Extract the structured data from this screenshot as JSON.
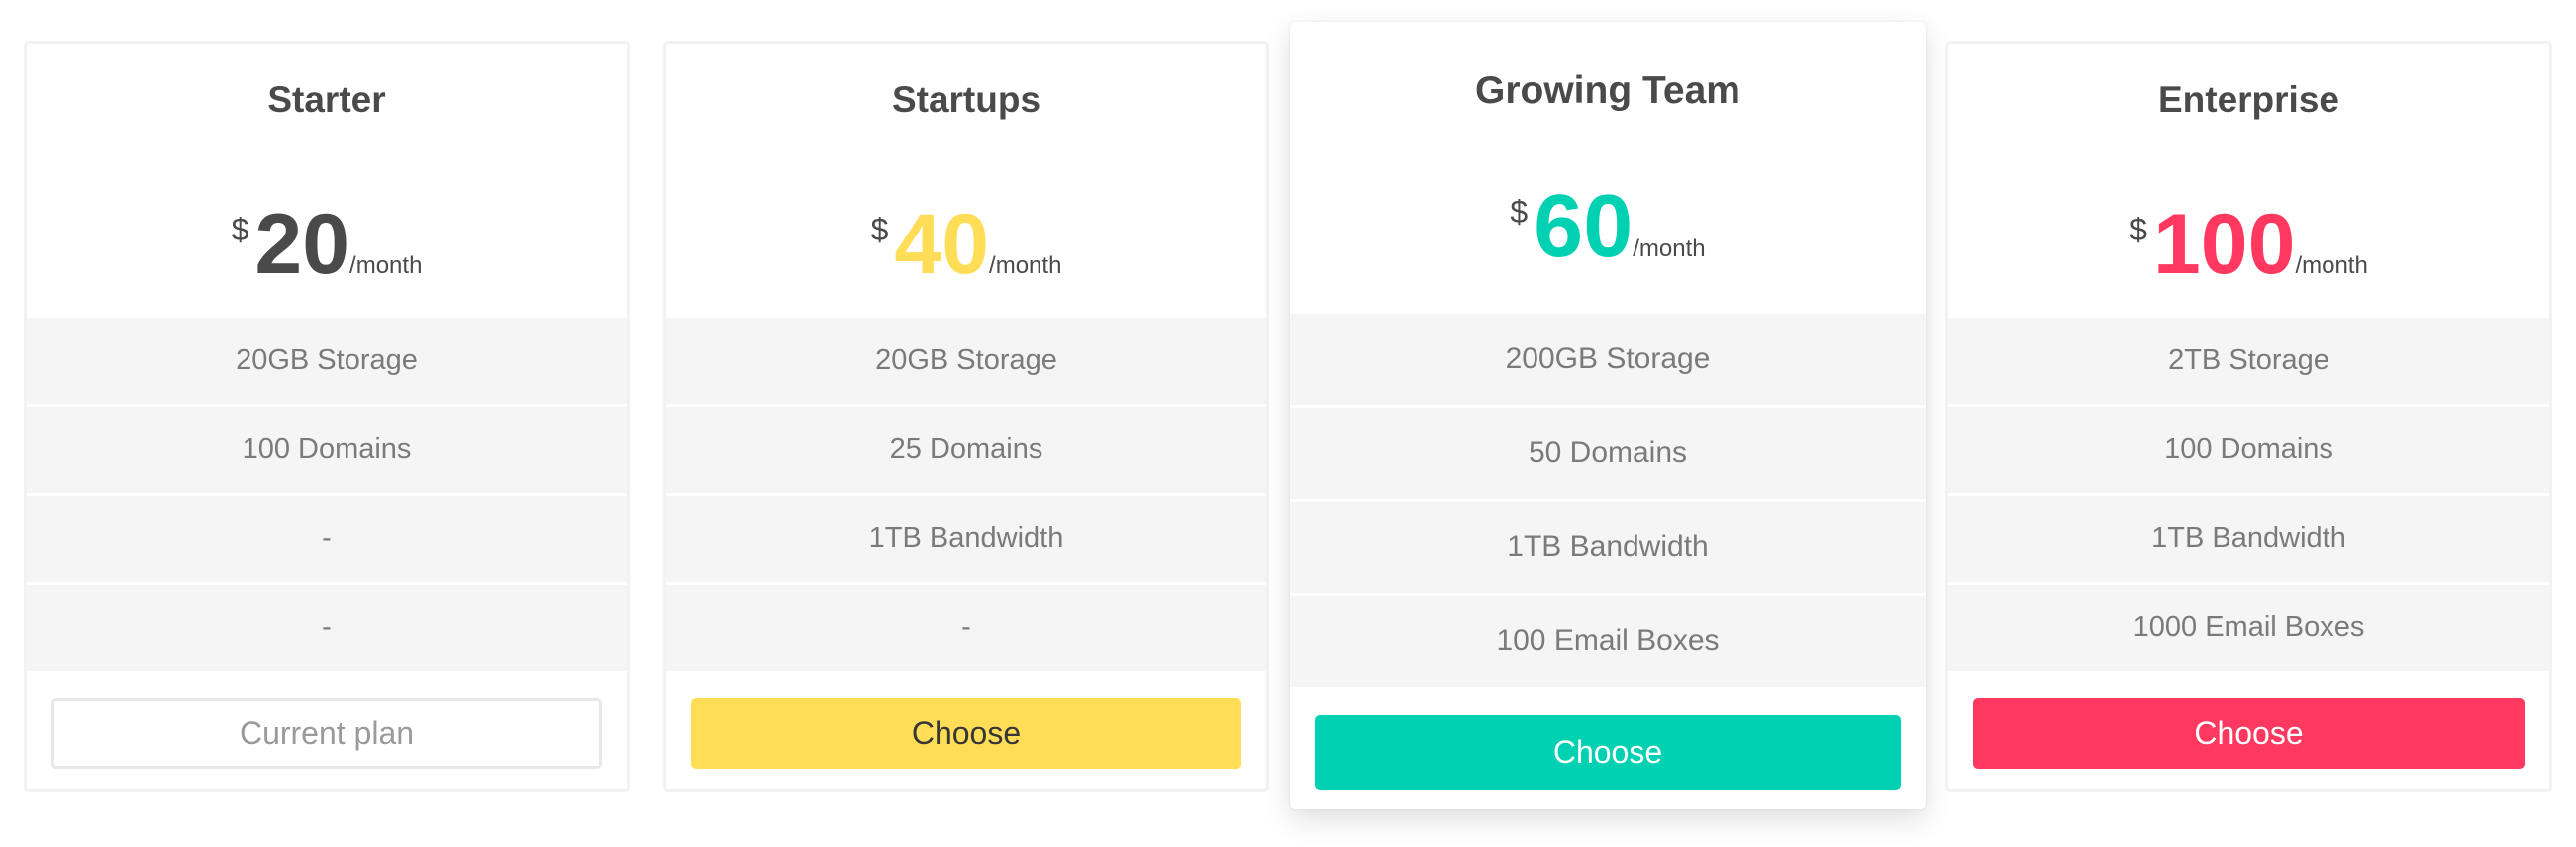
{
  "plans": [
    {
      "name": "Starter",
      "currency": "$",
      "price": "20",
      "period": "/month",
      "color": "#4a4a4a",
      "features": [
        "20GB Storage",
        "100 Domains",
        "-",
        "-"
      ],
      "button": {
        "label": "Current plan",
        "style": "current",
        "bg": "#ffffff",
        "fg": "#9a9a9a"
      }
    },
    {
      "name": "Startups",
      "currency": "$",
      "price": "40",
      "period": "/month",
      "color": "#ffdd57",
      "features": [
        "20GB Storage",
        "25 Domains",
        "1TB Bandwidth",
        "-"
      ],
      "button": {
        "label": "Choose",
        "style": "primary",
        "bg": "#ffdd57",
        "fg": "#363636"
      }
    },
    {
      "name": "Growing Team",
      "currency": "$",
      "price": "60",
      "period": "/month",
      "color": "#00d1b2",
      "featured": true,
      "features": [
        "200GB Storage",
        "50 Domains",
        "1TB Bandwidth",
        "100 Email Boxes"
      ],
      "button": {
        "label": "Choose",
        "style": "primary",
        "bg": "#00d1b2",
        "fg": "#ffffff"
      }
    },
    {
      "name": "Enterprise",
      "currency": "$",
      "price": "100",
      "period": "/month",
      "color": "#ff3860",
      "features": [
        "2TB Storage",
        "100 Domains",
        "1TB Bandwidth",
        "1000 Email Boxes"
      ],
      "button": {
        "label": "Choose",
        "style": "primary",
        "bg": "#ff3860",
        "fg": "#ffffff"
      }
    }
  ]
}
